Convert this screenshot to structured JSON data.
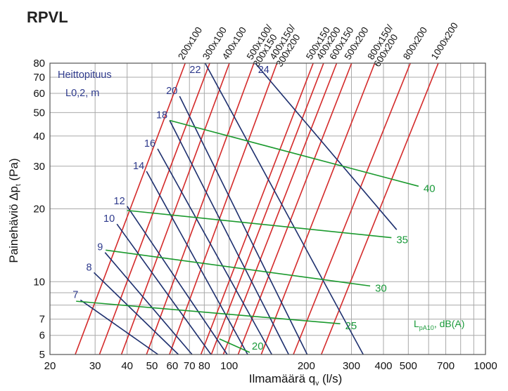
{
  "chart_data": {
    "type": "line",
    "title": "RPVL",
    "xlabel": "Ilmamäärä q",
    "xlabel_sub": "v",
    "xlabel_unit": " (l/s)",
    "ylabel": "Painehäviö Δp",
    "ylabel_sub": "t",
    "ylabel_unit": " (Pa)",
    "x_scale": "log",
    "y_scale": "log",
    "xlim": [
      20,
      1000
    ],
    "ylim": [
      5,
      80
    ],
    "x_ticks": [
      20,
      30,
      40,
      50,
      60,
      70,
      80,
      100,
      200,
      300,
      400,
      500,
      700,
      1000
    ],
    "x_tick_labels": [
      "20",
      "30",
      "40",
      "50",
      "60",
      "70",
      "80",
      "100",
      "200",
      "300",
      "400",
      "500",
      "700",
      "1000"
    ],
    "y_ticks": [
      5,
      6,
      7,
      10,
      20,
      30,
      40,
      50,
      60,
      70,
      80
    ],
    "y_tick_labels": [
      "5",
      "6",
      "7",
      "10",
      "20",
      "30",
      "40",
      "50",
      "60",
      "70",
      "80"
    ],
    "x_grid": [
      20,
      30,
      40,
      50,
      60,
      70,
      80,
      90,
      100,
      200,
      300,
      400,
      500,
      600,
      700,
      800,
      900,
      1000
    ],
    "y_grid": [
      5,
      6,
      7,
      8,
      9,
      10,
      20,
      30,
      40,
      50,
      60,
      70,
      80
    ],
    "grid": true,
    "duct_sizes": [
      {
        "label": "200x100",
        "line2": "",
        "points": [
          [
            25.1,
            5
          ],
          [
            67.4,
            80
          ]
        ]
      },
      {
        "label": "300x100",
        "line2": "",
        "points": [
          [
            31.2,
            5
          ],
          [
            84.0,
            80
          ]
        ]
      },
      {
        "label": "400x100",
        "line2": "",
        "points": [
          [
            38.0,
            5
          ],
          [
            100.2,
            80
          ]
        ]
      },
      {
        "label": "500x100/",
        "line2": "300x150",
        "points": [
          [
            47.6,
            5
          ],
          [
            124.9,
            80
          ]
        ]
      },
      {
        "label": "400x150/",
        "line2": "300x200",
        "points": [
          [
            58.5,
            5
          ],
          [
            153.6,
            80
          ]
        ]
      },
      {
        "label": "500x150",
        "line2": "",
        "points": [
          [
            77.6,
            5
          ],
          [
            212.8,
            80
          ]
        ]
      },
      {
        "label": "400x200",
        "line2": "",
        "points": [
          [
            85.2,
            5
          ],
          [
            233.6,
            80
          ]
        ]
      },
      {
        "label": "600x150",
        "line2": "",
        "points": [
          [
            94.9,
            5
          ],
          [
            262.7,
            80
          ]
        ]
      },
      {
        "label": "500x200",
        "line2": "",
        "points": [
          [
            108.4,
            5
          ],
          [
            300.4,
            80
          ]
        ]
      },
      {
        "label": "800x150/",
        "line2": "600x200",
        "points": [
          [
            133.4,
            5
          ],
          [
            369.7,
            80
          ]
        ]
      },
      {
        "label": "800x200",
        "line2": "",
        "points": [
          [
            178.1,
            5
          ],
          [
            509.1,
            80
          ]
        ]
      },
      {
        "label": "1000x200",
        "line2": "",
        "points": [
          [
            228.9,
            5
          ],
          [
            654.4,
            80
          ]
        ]
      }
    ],
    "throw_note": [
      "Heittopituus",
      "L0,2, m"
    ],
    "throw_lines": [
      {
        "label": "7",
        "points": [
          [
            26.3,
            8.4
          ],
          [
            52.8,
            5
          ]
        ]
      },
      {
        "label": "8",
        "points": [
          [
            29.7,
            10.9
          ],
          [
            63.4,
            5
          ]
        ]
      },
      {
        "label": "9",
        "points": [
          [
            32.8,
            13.2
          ],
          [
            71.7,
            5
          ]
        ]
      },
      {
        "label": "10",
        "points": [
          [
            36.5,
            17.3
          ],
          [
            85.0,
            5
          ]
        ]
      },
      {
        "label": "12",
        "points": [
          [
            40.0,
            20.5
          ],
          [
            98.3,
            5
          ]
        ]
      },
      {
        "label": "14",
        "points": [
          [
            47.6,
            28.6
          ],
          [
            118.1,
            5
          ]
        ]
      },
      {
        "label": "16",
        "points": [
          [
            52.6,
            35.4
          ],
          [
            146.7,
            5
          ]
        ]
      },
      {
        "label": "18",
        "points": [
          [
            58.6,
            46.4
          ],
          [
            170.7,
            5
          ]
        ]
      },
      {
        "label": "20",
        "points": [
          [
            64.1,
            58.4
          ],
          [
            201.6,
            5
          ]
        ]
      },
      {
        "label": "22",
        "points": [
          [
            80.6,
            80
          ],
          [
            333.5,
            5
          ]
        ]
      },
      {
        "label": "24",
        "points": [
          [
            126.4,
            80
          ],
          [
            450.3,
            16.4
          ]
        ]
      }
    ],
    "noise_legend": "L",
    "noise_legend_sub": "pA10",
    "noise_legend_unit": ", dB(A)",
    "noise_lines": [
      {
        "label": "20",
        "points": [
          [
            91.6,
            5.8
          ],
          [
            120.3,
            5.1
          ]
        ]
      },
      {
        "label": "25",
        "points": [
          [
            25.3,
            8.3
          ],
          [
            271.3,
            6.7
          ]
        ]
      },
      {
        "label": "30",
        "points": [
          [
            33.0,
            13.5
          ],
          [
            354.9,
            9.6
          ]
        ]
      },
      {
        "label": "35",
        "points": [
          [
            40.0,
            19.7
          ],
          [
            429.7,
            15.2
          ]
        ]
      },
      {
        "label": "40",
        "points": [
          [
            58.6,
            46.4
          ],
          [
            548.2,
            24.8
          ]
        ]
      }
    ],
    "colors": {
      "duct_lines": "#d42a2a",
      "throw_lines": "#1d2f6e",
      "noise_lines": "#1b9a2e",
      "throw_labels": "#2e3a8c",
      "noise_labels": "#1a9a3a",
      "grid": "#a9a9a9"
    }
  }
}
